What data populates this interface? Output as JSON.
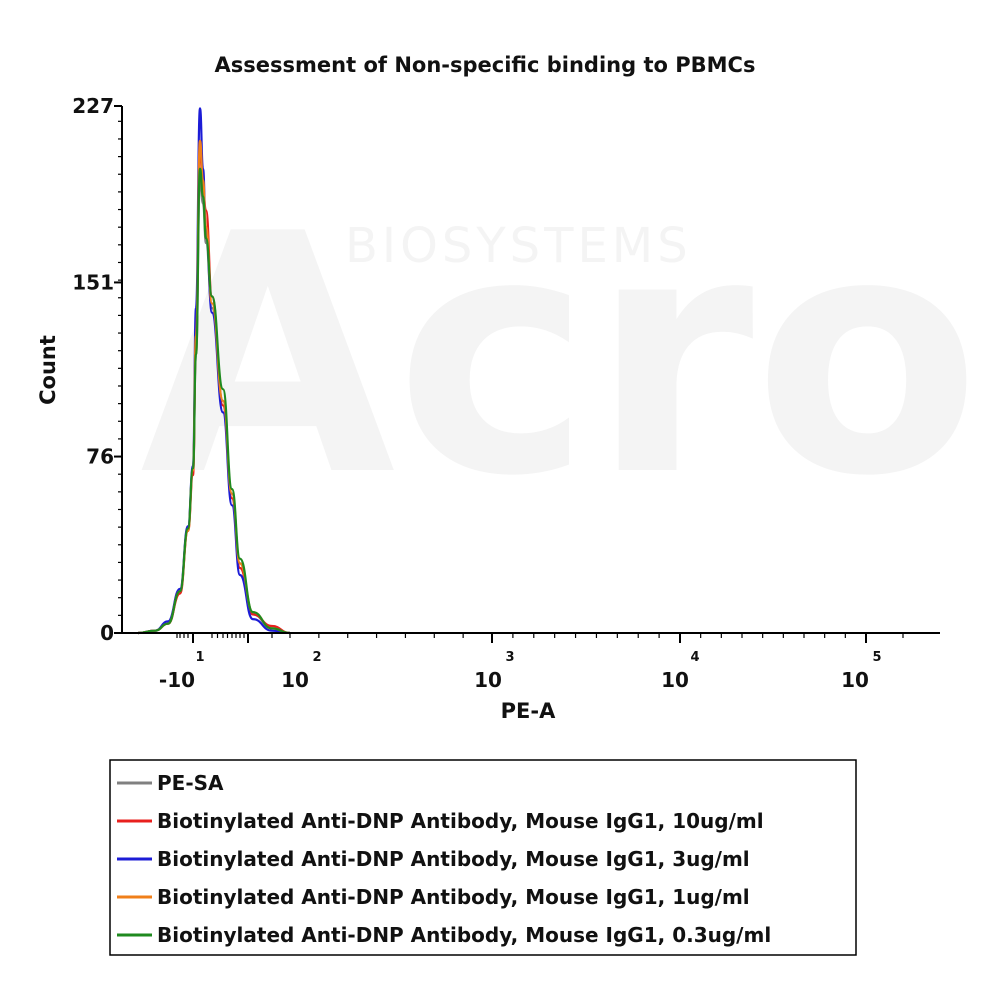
{
  "chart_data": {
    "type": "area",
    "title": "Assessment of Non-specific binding to PBMCs",
    "xlabel": "PE-A",
    "ylabel": "Count",
    "ylim": [
      0,
      227
    ],
    "y_ticks": [
      "0",
      "76",
      "151",
      "227"
    ],
    "x_ticks": [
      {
        "base": "-10",
        "exp": "1"
      },
      {
        "base": "10",
        "exp": "2"
      },
      {
        "base": "10",
        "exp": "3"
      },
      {
        "base": "10",
        "exp": "4"
      },
      {
        "base": "10",
        "exp": "5"
      }
    ],
    "legend_position": "bottom",
    "series": [
      {
        "name": "PE-SA",
        "color": "#808080",
        "x": [
          -300,
          -150,
          -80,
          -40,
          -20,
          -10,
          -5,
          0,
          5,
          10,
          20,
          40,
          60,
          80,
          120,
          200,
          300
        ],
        "y": [
          0,
          1,
          4,
          18,
          45,
          70,
          120,
          195,
          185,
          168,
          140,
          100,
          60,
          30,
          8,
          2,
          0
        ]
      },
      {
        "name": "Biotinylated Anti-DNP Antibody, Mouse IgG1, 10ug/ml",
        "color": "#e8201e",
        "x": [
          -300,
          -150,
          -80,
          -40,
          -20,
          -10,
          -5,
          0,
          5,
          10,
          20,
          40,
          60,
          80,
          120,
          200,
          300
        ],
        "y": [
          0,
          1,
          4,
          17,
          44,
          68,
          125,
          210,
          190,
          182,
          145,
          98,
          58,
          28,
          8,
          3,
          0
        ]
      },
      {
        "name": "Biotinylated Anti-DNP Antibody, Mouse IgG1, 3ug/ml",
        "color": "#1c1cd6",
        "x": [
          -300,
          -150,
          -80,
          -40,
          -20,
          -10,
          -5,
          0,
          5,
          10,
          20,
          40,
          60,
          80,
          120,
          200,
          300
        ],
        "y": [
          0,
          1,
          5,
          19,
          46,
          72,
          140,
          226,
          200,
          172,
          138,
          95,
          55,
          25,
          6,
          1,
          0
        ]
      },
      {
        "name": "Biotinylated Anti-DNP Antibody, Mouse IgG1, 1ug/ml",
        "color": "#f07f1a",
        "x": [
          -300,
          -150,
          -80,
          -40,
          -20,
          -10,
          -5,
          0,
          5,
          10,
          20,
          40,
          60,
          80,
          120,
          200,
          300
        ],
        "y": [
          0,
          1,
          4,
          18,
          44,
          70,
          128,
          212,
          195,
          175,
          142,
          100,
          60,
          30,
          9,
          2,
          0
        ]
      },
      {
        "name": "Biotinylated Anti-DNP Antibody, Mouse IgG1, 0.3ug/ml",
        "color": "#1f8a1f",
        "x": [
          -300,
          -150,
          -80,
          -40,
          -20,
          -10,
          -5,
          0,
          5,
          10,
          20,
          40,
          60,
          80,
          120,
          200,
          300
        ],
        "y": [
          0,
          1,
          4,
          18,
          45,
          71,
          120,
          200,
          188,
          170,
          145,
          105,
          62,
          32,
          9,
          2,
          0
        ]
      }
    ]
  },
  "watermark": {
    "brand": "Acro",
    "sub": "BIOSYSTEMS"
  }
}
